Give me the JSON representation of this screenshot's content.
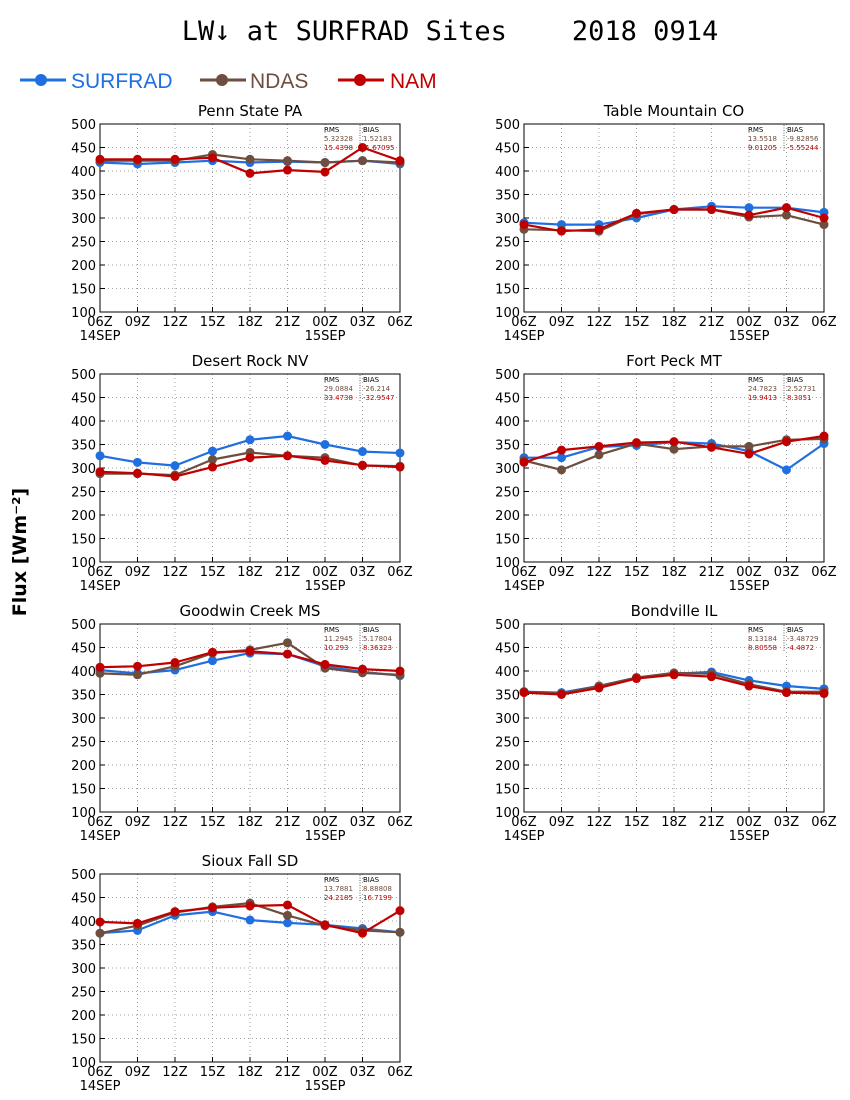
{
  "figure": {
    "title": "LW↓ at SURFRAD Sites    2018 0914",
    "ylabel": "Flux [Wm⁻²]"
  },
  "legend": [
    {
      "name": "SURFRAD",
      "color": "#1f6fe0"
    },
    {
      "name": "NDAS",
      "color": "#6e4e3e"
    },
    {
      "name": "NAM",
      "color": "#c00000"
    }
  ],
  "chart_data": [
    {
      "type": "line",
      "title": "Penn State PA",
      "x": [
        "06Z",
        "09Z",
        "12Z",
        "15Z",
        "18Z",
        "21Z",
        "00Z",
        "03Z",
        "06Z"
      ],
      "x_date_labels": [
        "14SEP",
        "",
        "",
        "",
        "",
        "",
        "15SEP",
        "",
        ""
      ],
      "ylim": [
        100,
        500
      ],
      "yticks": [
        100,
        150,
        200,
        250,
        300,
        350,
        400,
        450,
        500
      ],
      "grid": true,
      "series": [
        {
          "name": "SURFRAD",
          "values": [
            418,
            415,
            418,
            422,
            418,
            420,
            418,
            422,
            415
          ]
        },
        {
          "name": "NDAS",
          "values": [
            422,
            422,
            422,
            435,
            425,
            422,
            418,
            422,
            418
          ]
        },
        {
          "name": "NAM",
          "values": [
            425,
            425,
            425,
            428,
            395,
            402,
            398,
            450,
            422
          ]
        }
      ],
      "stats": {
        "rms_label": "RMS",
        "bias_label": "BIAS",
        "ndas_rms": "5.32328",
        "ndas_bias": "1.52183",
        "nam_rms": "15.4398",
        "nam_bias": "-1.67095"
      }
    },
    {
      "type": "line",
      "title": "Table Mountain CO",
      "x": [
        "06Z",
        "09Z",
        "12Z",
        "15Z",
        "18Z",
        "21Z",
        "00Z",
        "03Z",
        "06Z"
      ],
      "x_date_labels": [
        "14SEP",
        "",
        "",
        "",
        "",
        "",
        "15SEP",
        "",
        ""
      ],
      "ylim": [
        100,
        500
      ],
      "yticks": [
        100,
        150,
        200,
        250,
        300,
        350,
        400,
        450,
        500
      ],
      "grid": true,
      "series": [
        {
          "name": "SURFRAD",
          "values": [
            290,
            286,
            286,
            300,
            318,
            325,
            322,
            322,
            312
          ]
        },
        {
          "name": "NDAS",
          "values": [
            276,
            274,
            272,
            308,
            318,
            318,
            302,
            306,
            286
          ]
        },
        {
          "name": "NAM",
          "values": [
            286,
            272,
            276,
            310,
            318,
            318,
            306,
            322,
            300
          ]
        }
      ],
      "stats": {
        "rms_label": "RMS",
        "bias_label": "BIAS",
        "ndas_rms": "13.5518",
        "ndas_bias": "-9.82856",
        "nam_rms": "9.01205",
        "nam_bias": "-5.55244"
      }
    },
    {
      "type": "line",
      "title": "Desert Rock NV",
      "x": [
        "06Z",
        "09Z",
        "12Z",
        "15Z",
        "18Z",
        "21Z",
        "00Z",
        "03Z",
        "06Z"
      ],
      "x_date_labels": [
        "14SEP",
        "",
        "",
        "",
        "",
        "",
        "15SEP",
        "",
        ""
      ],
      "ylim": [
        100,
        500
      ],
      "yticks": [
        100,
        150,
        200,
        250,
        300,
        350,
        400,
        450,
        500
      ],
      "grid": true,
      "series": [
        {
          "name": "SURFRAD",
          "values": [
            326,
            312,
            305,
            336,
            360,
            368,
            350,
            335,
            332
          ]
        },
        {
          "name": "NDAS",
          "values": [
            288,
            288,
            285,
            318,
            333,
            326,
            322,
            305,
            304
          ]
        },
        {
          "name": "NAM",
          "values": [
            292,
            289,
            282,
            302,
            322,
            326,
            316,
            306,
            302
          ]
        }
      ],
      "stats": {
        "rms_label": "RMS",
        "bias_label": "BIAS",
        "ndas_rms": "29.0884",
        "ndas_bias": "-26.214",
        "nam_rms": "33.4738",
        "nam_bias": "-32.9547"
      }
    },
    {
      "type": "line",
      "title": "Fort Peck MT",
      "x": [
        "06Z",
        "09Z",
        "12Z",
        "15Z",
        "18Z",
        "21Z",
        "00Z",
        "03Z",
        "06Z"
      ],
      "x_date_labels": [
        "14SEP",
        "",
        "",
        "",
        "",
        "",
        "15SEP",
        "",
        ""
      ],
      "ylim": [
        100,
        500
      ],
      "yticks": [
        100,
        150,
        200,
        250,
        300,
        350,
        400,
        450,
        500
      ],
      "grid": true,
      "series": [
        {
          "name": "SURFRAD",
          "values": [
            322,
            322,
            345,
            348,
            355,
            352,
            336,
            296,
            352
          ]
        },
        {
          "name": "NDAS",
          "values": [
            316,
            296,
            328,
            352,
            340,
            346,
            346,
            360,
            362
          ]
        },
        {
          "name": "NAM",
          "values": [
            312,
            338,
            346,
            354,
            356,
            344,
            330,
            356,
            368
          ]
        }
      ],
      "stats": {
        "rms_label": "RMS",
        "bias_label": "BIAS",
        "ndas_rms": "24.7823",
        "ndas_bias": "2.52731",
        "nam_rms": "19.9413",
        "nam_bias": "8.3051"
      }
    },
    {
      "type": "line",
      "title": "Goodwin Creek MS",
      "x": [
        "06Z",
        "09Z",
        "12Z",
        "15Z",
        "18Z",
        "21Z",
        "00Z",
        "03Z",
        "06Z"
      ],
      "x_date_labels": [
        "14SEP",
        "",
        "",
        "",
        "",
        "",
        "15SEP",
        "",
        ""
      ],
      "ylim": [
        100,
        500
      ],
      "yticks": [
        100,
        150,
        200,
        250,
        300,
        350,
        400,
        450,
        500
      ],
      "grid": true,
      "series": [
        {
          "name": "SURFRAD",
          "values": [
            402,
            395,
            402,
            422,
            438,
            436,
            410,
            398,
            390
          ]
        },
        {
          "name": "NDAS",
          "values": [
            395,
            392,
            410,
            438,
            445,
            460,
            406,
            396,
            392
          ]
        },
        {
          "name": "NAM",
          "values": [
            408,
            410,
            418,
            440,
            442,
            436,
            414,
            404,
            400
          ]
        }
      ],
      "stats": {
        "rms_label": "RMS",
        "bias_label": "BIAS",
        "ndas_rms": "11.2945",
        "ndas_bias": "5.17804",
        "nam_rms": "10.293",
        "nam_bias": "8.36323"
      }
    },
    {
      "type": "line",
      "title": "Bondville IL",
      "x": [
        "06Z",
        "09Z",
        "12Z",
        "15Z",
        "18Z",
        "21Z",
        "00Z",
        "03Z",
        "06Z"
      ],
      "x_date_labels": [
        "14SEP",
        "",
        "",
        "",
        "",
        "",
        "15SEP",
        "",
        ""
      ],
      "ylim": [
        100,
        500
      ],
      "yticks": [
        100,
        150,
        200,
        250,
        300,
        350,
        400,
        450,
        500
      ],
      "grid": true,
      "series": [
        {
          "name": "SURFRAD",
          "values": [
            356,
            354,
            368,
            386,
            394,
            398,
            380,
            368,
            362
          ]
        },
        {
          "name": "NDAS",
          "values": [
            356,
            352,
            368,
            386,
            396,
            394,
            372,
            356,
            356
          ]
        },
        {
          "name": "NAM",
          "values": [
            354,
            350,
            364,
            384,
            392,
            388,
            368,
            354,
            352
          ]
        }
      ],
      "stats": {
        "rms_label": "RMS",
        "bias_label": "BIAS",
        "ndas_rms": "8.13184",
        "ndas_bias": "-3.48729",
        "nam_rms": "8.80558",
        "nam_bias": "-4.4872"
      }
    },
    {
      "type": "line",
      "title": "Sioux Fall SD",
      "x": [
        "06Z",
        "09Z",
        "12Z",
        "15Z",
        "18Z",
        "21Z",
        "00Z",
        "03Z",
        "06Z"
      ],
      "x_date_labels": [
        "14SEP",
        "",
        "",
        "",
        "",
        "",
        "15SEP",
        "",
        ""
      ],
      "ylim": [
        100,
        500
      ],
      "yticks": [
        100,
        150,
        200,
        250,
        300,
        350,
        400,
        450,
        500
      ],
      "grid": true,
      "series": [
        {
          "name": "SURFRAD",
          "values": [
            374,
            380,
            412,
            420,
            402,
            396,
            392,
            384,
            376
          ]
        },
        {
          "name": "NDAS",
          "values": [
            374,
            390,
            418,
            430,
            438,
            412,
            390,
            380,
            376
          ]
        },
        {
          "name": "NAM",
          "values": [
            398,
            395,
            420,
            428,
            432,
            434,
            392,
            374,
            422
          ]
        }
      ],
      "stats": {
        "rms_label": "RMS",
        "bias_label": "BIAS",
        "ndas_rms": "13.7881",
        "ndas_bias": "8.88808",
        "nam_rms": "24.2185",
        "nam_bias": "16.7199"
      }
    }
  ]
}
